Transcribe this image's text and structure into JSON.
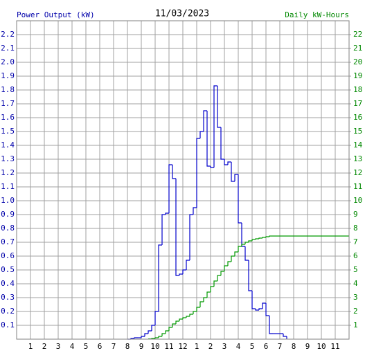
{
  "chart_data": {
    "type": "line",
    "title": "11/03/2023",
    "ylabel": "Power Output (kW)",
    "y2label": "Daily kW-Hours",
    "grid": true,
    "xlim": [
      0,
      24
    ],
    "xticks": [
      1,
      2,
      3,
      4,
      5,
      6,
      7,
      8,
      9,
      10,
      11,
      12,
      {
        "value": 13,
        "label": "1"
      },
      {
        "value": 14,
        "label": "2"
      },
      {
        "value": 15,
        "label": "3"
      },
      {
        "value": 16,
        "label": "4"
      },
      {
        "value": 17,
        "label": "5"
      },
      {
        "value": 18,
        "label": "6"
      },
      {
        "value": 19,
        "label": "7"
      },
      {
        "value": 20,
        "label": "8"
      },
      {
        "value": 21,
        "label": "9"
      },
      {
        "value": 22,
        "label": "10"
      },
      {
        "value": 23,
        "label": "11"
      }
    ],
    "ylim": [
      0,
      2.3
    ],
    "yticks": [
      0.1,
      0.2,
      0.3,
      0.4,
      0.5,
      0.6,
      0.7,
      0.8,
      0.9,
      {
        "value": 1,
        "label": "1.0"
      },
      1.1,
      1.2,
      1.3,
      1.4,
      1.5,
      1.6,
      1.7,
      1.8,
      1.9,
      {
        "value": 2,
        "label": "2.0"
      },
      2.1,
      2.2
    ],
    "y2lim": [
      0,
      23
    ],
    "y2ticks": [
      1,
      2,
      3,
      4,
      5,
      6,
      7,
      8,
      9,
      10,
      11,
      12,
      13,
      14,
      15,
      16,
      17,
      18,
      19,
      20,
      21,
      22
    ],
    "series": [
      {
        "color": "#0000cc",
        "axis": "y",
        "x": [
          8,
          8.25,
          8.5,
          8.75,
          9,
          9.25,
          9.5,
          9.75,
          10,
          10.25,
          10.5,
          10.75,
          11,
          11.25,
          11.5,
          11.75,
          12,
          12.25,
          12.5,
          12.75,
          13,
          13.25,
          13.5,
          13.75,
          14,
          14.25,
          14.5,
          14.75,
          15,
          15.25,
          15.5,
          15.75,
          16,
          16.25,
          16.5,
          16.75,
          17,
          17.25,
          17.5,
          17.75,
          18,
          18.25,
          18.5,
          18.75,
          19,
          19.25,
          19.5
        ],
        "values": [
          0,
          0.005,
          0.01,
          0.01,
          0.02,
          0.04,
          0.06,
          0.1,
          0.2,
          0.68,
          0.9,
          0.91,
          1.26,
          1.16,
          0.46,
          0.47,
          0.5,
          0.57,
          0.9,
          0.95,
          1.45,
          1.5,
          1.65,
          1.25,
          1.24,
          1.83,
          1.53,
          1.3,
          1.26,
          1.28,
          1.14,
          1.19,
          0.84,
          0.67,
          0.57,
          0.35,
          0.22,
          0.21,
          0.22,
          0.26,
          0.17,
          0.04,
          0.04,
          0.04,
          0.04,
          0.02,
          0
        ]
      },
      {
        "color": "#009900",
        "axis": "y2",
        "x": [
          9.5,
          9.75,
          10,
          10.25,
          10.5,
          10.75,
          11,
          11.25,
          11.5,
          11.75,
          12,
          12.25,
          12.5,
          12.75,
          13,
          13.25,
          13.5,
          13.75,
          14,
          14.25,
          14.5,
          14.75,
          15,
          15.25,
          15.5,
          15.75,
          16,
          16.25,
          16.5,
          16.75,
          17,
          17.25,
          17.5,
          17.75,
          18,
          18.25,
          18.5,
          24
        ],
        "values": [
          0.02,
          0.05,
          0.1,
          0.2,
          0.4,
          0.6,
          0.85,
          1.1,
          1.3,
          1.45,
          1.55,
          1.65,
          1.8,
          2.0,
          2.3,
          2.7,
          3.0,
          3.4,
          3.8,
          4.2,
          4.6,
          4.9,
          5.3,
          5.6,
          6.0,
          6.3,
          6.7,
          6.85,
          7.0,
          7.1,
          7.2,
          7.25,
          7.3,
          7.35,
          7.4,
          7.45,
          7.45,
          7.45
        ]
      }
    ]
  }
}
